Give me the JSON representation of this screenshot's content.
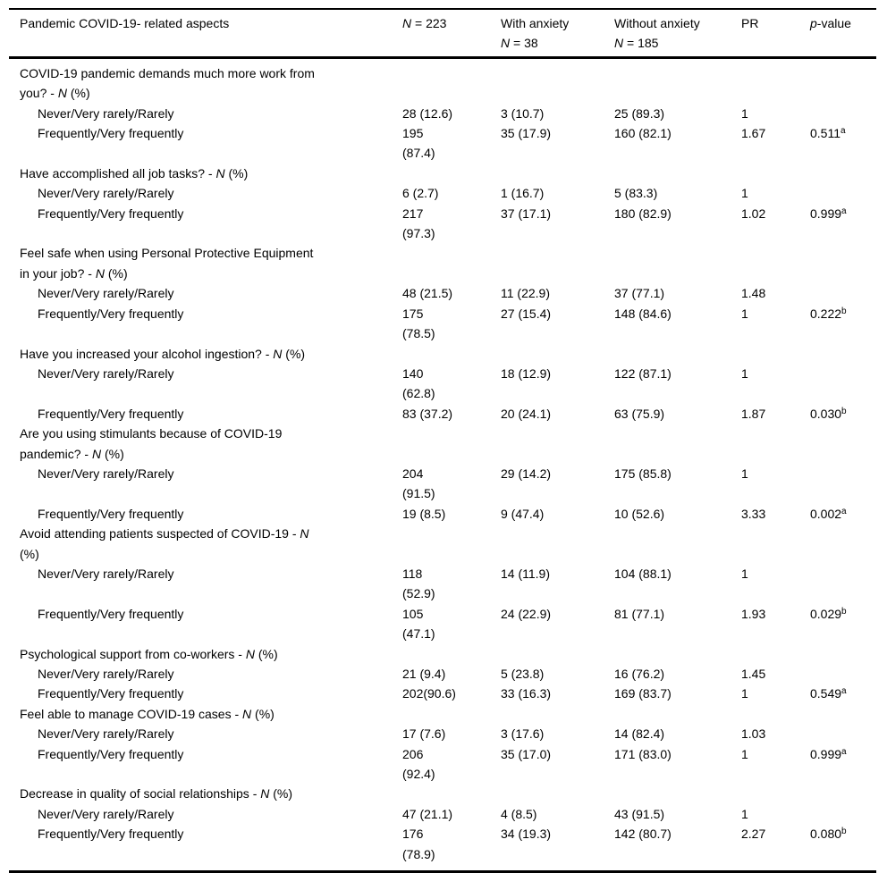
{
  "table": {
    "header": {
      "aspect": "Pandemic COVID-19- related aspects",
      "total_italic": "N",
      "total_rest": " = 223",
      "with_line1": "With anxiety",
      "with_italic": "N",
      "with_rest": " = 38",
      "without_line1": "Without anxiety",
      "without_italic": "N",
      "without_rest": " = 185",
      "pr": "PR",
      "p_italic": "p",
      "p_rest": "-value"
    },
    "sections": [
      {
        "title": [
          {
            "t": "COVID-19 pandemic demands much more work from"
          },
          {
            "br": true
          },
          {
            "t": "you? - "
          },
          {
            "t": "N",
            "i": true
          },
          {
            "t": " (%)"
          }
        ],
        "rows": [
          {
            "label": "Never/Very rarely/Rarely",
            "n": "28 (12.6)",
            "with": "3 (10.7)",
            "without": "25 (89.3)",
            "pr": "1",
            "p": "",
            "p_sup": ""
          },
          {
            "label": "Frequently/Very frequently",
            "n": "195\n(87.4)",
            "with": "35 (17.9)",
            "without": "160 (82.1)",
            "pr": "1.67",
            "p": "0.511",
            "p_sup": "a"
          }
        ]
      },
      {
        "title": [
          {
            "t": "Have accomplished all job tasks? - "
          },
          {
            "t": "N",
            "i": true
          },
          {
            "t": " (%)"
          }
        ],
        "rows": [
          {
            "label": "Never/Very rarely/Rarely",
            "n": "6 (2.7)",
            "with": "1 (16.7)",
            "without": "5 (83.3)",
            "pr": "1",
            "p": "",
            "p_sup": ""
          },
          {
            "label": "Frequently/Very frequently",
            "n": "217\n(97.3)",
            "with": "37 (17.1)",
            "without": "180 (82.9)",
            "pr": "1.02",
            "p": "0.999",
            "p_sup": "a"
          }
        ]
      },
      {
        "title": [
          {
            "t": "Feel safe when using Personal Protective Equipment"
          },
          {
            "br": true
          },
          {
            "t": "in your job? - "
          },
          {
            "t": "N",
            "i": true
          },
          {
            "t": " (%)"
          }
        ],
        "rows": [
          {
            "label": "Never/Very rarely/Rarely",
            "n": "48 (21.5)",
            "with": "11 (22.9)",
            "without": "37 (77.1)",
            "pr": "1.48",
            "p": "",
            "p_sup": ""
          },
          {
            "label": "Frequently/Very frequently",
            "n": "175\n(78.5)",
            "with": "27 (15.4)",
            "without": "148 (84.6)",
            "pr": "1",
            "p": "0.222",
            "p_sup": "b"
          }
        ]
      },
      {
        "title": [
          {
            "t": "Have you increased your alcohol ingestion? - "
          },
          {
            "t": "N",
            "i": true
          },
          {
            "t": " (%)"
          }
        ],
        "rows": [
          {
            "label": "Never/Very rarely/Rarely",
            "n": "140\n(62.8)",
            "with": "18 (12.9)",
            "without": "122 (87.1)",
            "pr": "1",
            "p": "",
            "p_sup": ""
          },
          {
            "label": "Frequently/Very frequently",
            "n": "83 (37.2)",
            "with": "20 (24.1)",
            "without": "63 (75.9)",
            "pr": "1.87",
            "p": "0.030",
            "p_sup": "b"
          }
        ]
      },
      {
        "title": [
          {
            "t": "Are you using stimulants because of COVID-19"
          },
          {
            "br": true
          },
          {
            "t": "pandemic? - "
          },
          {
            "t": "N",
            "i": true
          },
          {
            "t": " (%)"
          }
        ],
        "rows": [
          {
            "label": "Never/Very rarely/Rarely",
            "n": "204\n(91.5)",
            "with": "29 (14.2)",
            "without": "175 (85.8)",
            "pr": "1",
            "p": "",
            "p_sup": ""
          },
          {
            "label": "Frequently/Very frequently",
            "n": "19 (8.5)",
            "with": "9 (47.4)",
            "without": "10 (52.6)",
            "pr": "3.33",
            "p": "0.002",
            "p_sup": "a"
          }
        ]
      },
      {
        "title": [
          {
            "t": "Avoid attending patients suspected of COVID-19 - "
          },
          {
            "t": "N",
            "i": true
          },
          {
            "br": true
          },
          {
            "t": "(%)"
          }
        ],
        "rows": [
          {
            "label": "Never/Very rarely/Rarely",
            "n": "118\n(52.9)",
            "with": "14 (11.9)",
            "without": "104 (88.1)",
            "pr": "1",
            "p": "",
            "p_sup": ""
          },
          {
            "label": "Frequently/Very frequently",
            "n": "105\n(47.1)",
            "with": "24 (22.9)",
            "without": "81 (77.1)",
            "pr": "1.93",
            "p": "0.029",
            "p_sup": "b"
          }
        ]
      },
      {
        "title": [
          {
            "t": "Psychological support from co-workers - "
          },
          {
            "t": "N",
            "i": true
          },
          {
            "t": " (%)"
          }
        ],
        "rows": [
          {
            "label": "Never/Very rarely/Rarely",
            "n": "21 (9.4)",
            "with": "5 (23.8)",
            "without": "16 (76.2)",
            "pr": "1.45",
            "p": "",
            "p_sup": ""
          },
          {
            "label": "Frequently/Very frequently",
            "n": "202(90.6)",
            "with": "33 (16.3)",
            "without": "169 (83.7)",
            "pr": "1",
            "p": "0.549",
            "p_sup": "a"
          }
        ]
      },
      {
        "title": [
          {
            "t": "Feel able to manage COVID-19 cases - "
          },
          {
            "t": "N",
            "i": true
          },
          {
            "t": " (%)"
          }
        ],
        "rows": [
          {
            "label": "Never/Very rarely/Rarely",
            "n": "17 (7.6)",
            "with": "3 (17.6)",
            "without": "14 (82.4)",
            "pr": "1.03",
            "p": "",
            "p_sup": ""
          },
          {
            "label": "Frequently/Very frequently",
            "n": "206\n(92.4)",
            "with": "35 (17.0)",
            "without": "171 (83.0)",
            "pr": "1",
            "p": "0.999",
            "p_sup": "a"
          }
        ]
      },
      {
        "title": [
          {
            "t": "Decrease in quality of social relationships - "
          },
          {
            "t": "N",
            "i": true
          },
          {
            "t": " (%)"
          }
        ],
        "rows": [
          {
            "label": "Never/Very rarely/Rarely",
            "n": "47 (21.1)",
            "with": "4 (8.5)",
            "without": "43 (91.5)",
            "pr": "1",
            "p": "",
            "p_sup": ""
          },
          {
            "label": "Frequently/Very frequently",
            "n": "176\n(78.9)",
            "with": "34 (19.3)",
            "without": "142 (80.7)",
            "pr": "2.27",
            "p": "0.080",
            "p_sup": "b"
          }
        ]
      }
    ]
  }
}
